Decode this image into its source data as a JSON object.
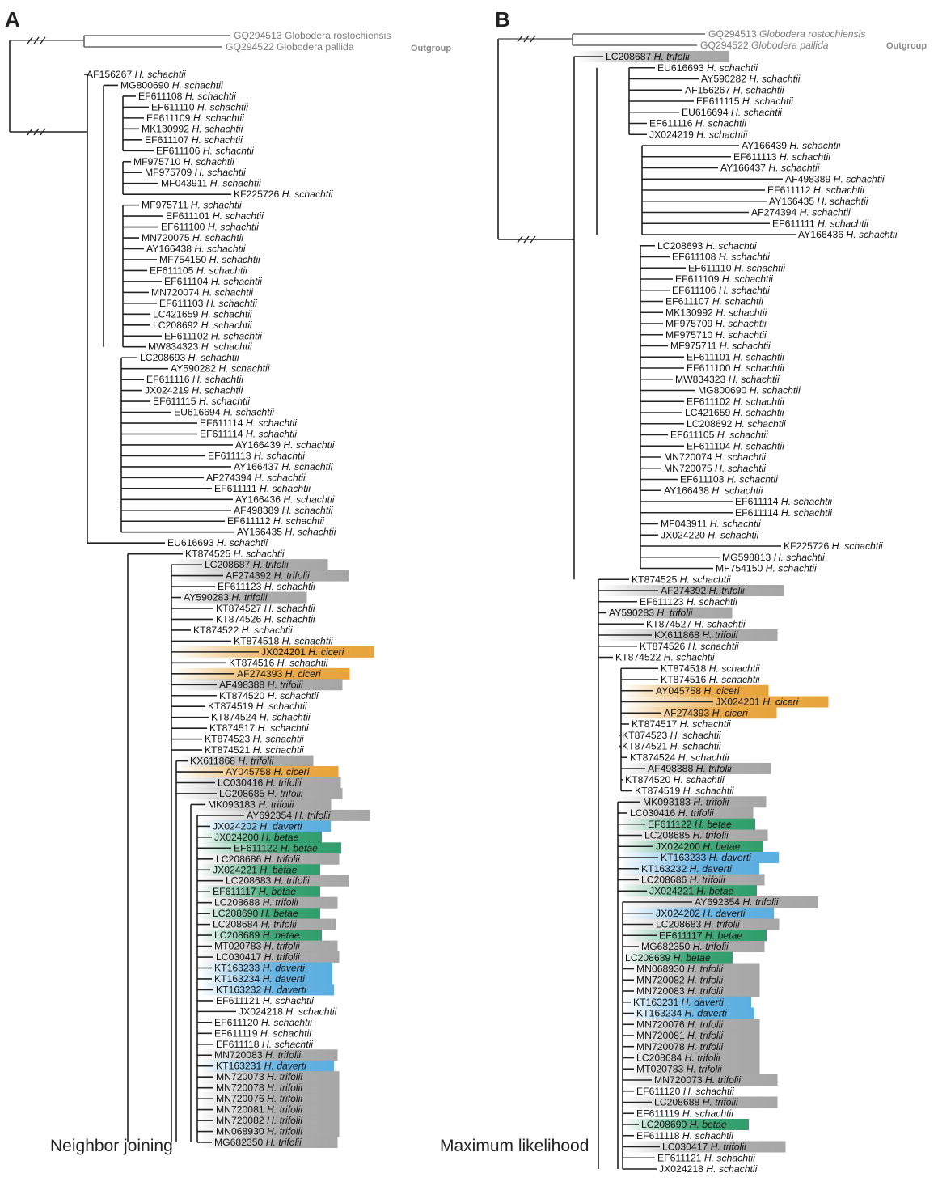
{
  "species_colors": {
    "H. trifolii": "#a6a6a6",
    "H. ciceri": "#e8a33a",
    "H. betae": "#2e9e6b",
    "H. daverti": "#5aaee0"
  },
  "panels": [
    {
      "letter": "A",
      "method": "Neighbor joining",
      "outgroup_label": "Outgroup",
      "outgroup": [
        {
          "acc": "GQ294513",
          "sp": "Globodera rostochiensis"
        },
        {
          "acc": "GQ294522",
          "sp": "Globodera pallida"
        }
      ],
      "taxa": [
        {
          "acc": "AF156267",
          "sp": "H. schachtii"
        },
        {
          "acc": "MG800690",
          "sp": "H. schachtii"
        },
        {
          "acc": "EF611108",
          "sp": "H. schachtii"
        },
        {
          "acc": "EF611110",
          "sp": "H. schachtii"
        },
        {
          "acc": "EF611109",
          "sp": "H. schachtii"
        },
        {
          "acc": "MK130992",
          "sp": "H. schachtii"
        },
        {
          "acc": "EF611107",
          "sp": "H. schachtii"
        },
        {
          "acc": "EF611106",
          "sp": "H. schachtii"
        },
        {
          "acc": "MF975710",
          "sp": "H. schachtii"
        },
        {
          "acc": "MF975709",
          "sp": "H. schachtii"
        },
        {
          "acc": "MF043911",
          "sp": "H. schachtii"
        },
        {
          "acc": "KF225726",
          "sp": "H. schachtii"
        },
        {
          "acc": "MF975711",
          "sp": "H. schachtii"
        },
        {
          "acc": "EF611101",
          "sp": "H. schachtii"
        },
        {
          "acc": "EF611100",
          "sp": "H. schachtii"
        },
        {
          "acc": "MN720075",
          "sp": "H. schachtii"
        },
        {
          "acc": "AY166438",
          "sp": "H. schachtii"
        },
        {
          "acc": "MF754150",
          "sp": "H. schachtii"
        },
        {
          "acc": "EF611105",
          "sp": "H. schachtii"
        },
        {
          "acc": "EF611104",
          "sp": "H. schachtii"
        },
        {
          "acc": "MN720074",
          "sp": "H. schachtii"
        },
        {
          "acc": "EF611103",
          "sp": "H. schachtii"
        },
        {
          "acc": "LC421659",
          "sp": "H. schachtii"
        },
        {
          "acc": "LC208692",
          "sp": "H. schachtii"
        },
        {
          "acc": "EF611102",
          "sp": "H. schachtii"
        },
        {
          "acc": "MW834323",
          "sp": "H. schachtii"
        },
        {
          "acc": "LC208693",
          "sp": "H. schachtii"
        },
        {
          "acc": "AY590282",
          "sp": "H. schachtii"
        },
        {
          "acc": "EF611116",
          "sp": "H. schachtii"
        },
        {
          "acc": "JX024219",
          "sp": "H. schachtii"
        },
        {
          "acc": "EF611115",
          "sp": "H. schachtii"
        },
        {
          "acc": "EU616694",
          "sp": "H. schachtii"
        },
        {
          "acc": "EF611114",
          "sp": "H. schachtii"
        },
        {
          "acc": "EF611114",
          "sp": "H. schachtii"
        },
        {
          "acc": "AY166439",
          "sp": "H. schachtii"
        },
        {
          "acc": "EF611113",
          "sp": "H. schachtii"
        },
        {
          "acc": "AY166437",
          "sp": "H. schachtii"
        },
        {
          "acc": "AF274394",
          "sp": "H. schachtii"
        },
        {
          "acc": "EF611111",
          "sp": "H. schachtii"
        },
        {
          "acc": "AY166436",
          "sp": "H. schachtii"
        },
        {
          "acc": "AF498389",
          "sp": "H. schachtii"
        },
        {
          "acc": "EF611112",
          "sp": "H. schachtii"
        },
        {
          "acc": "AY166435",
          "sp": "H. schachtii"
        },
        {
          "acc": "EU616693",
          "sp": "H. schachtii"
        },
        {
          "acc": "KT874525",
          "sp": "H. schachtii"
        },
        {
          "acc": "LC208687",
          "sp": "H. trifolii"
        },
        {
          "acc": "AF274392",
          "sp": "H. trifolii"
        },
        {
          "acc": "EF611123",
          "sp": "H. schachtii"
        },
        {
          "acc": "AY590283",
          "sp": "H. trifolii"
        },
        {
          "acc": "KT874527",
          "sp": "H. schachtii"
        },
        {
          "acc": "KT874526",
          "sp": "H. schachtii"
        },
        {
          "acc": "KT874522",
          "sp": "H. schachtii"
        },
        {
          "acc": "KT874518",
          "sp": "H. schachtii"
        },
        {
          "acc": "JX024201",
          "sp": "H. ciceri"
        },
        {
          "acc": "KT874516",
          "sp": "H. schachtii"
        },
        {
          "acc": "AF274393",
          "sp": "H. ciceri"
        },
        {
          "acc": "AF498388",
          "sp": "H. trifolii"
        },
        {
          "acc": "KT874520",
          "sp": "H. schachtii"
        },
        {
          "acc": "KT874519",
          "sp": "H. schachtii"
        },
        {
          "acc": "KT874524",
          "sp": "H. schachtii"
        },
        {
          "acc": "KT874517",
          "sp": "H. schachtii"
        },
        {
          "acc": "KT874523",
          "sp": "H. schachtii"
        },
        {
          "acc": "KT874521",
          "sp": "H. schachtii"
        },
        {
          "acc": "KX611868",
          "sp": "H. trifolii"
        },
        {
          "acc": "AY045758",
          "sp": "H. ciceri"
        },
        {
          "acc": "LC030416",
          "sp": "H. trifolii"
        },
        {
          "acc": "LC208685",
          "sp": "H. trifolii"
        },
        {
          "acc": "MK093183",
          "sp": "H. trifolii"
        },
        {
          "acc": "AY692354",
          "sp": "H. trifolii"
        },
        {
          "acc": "JX024202",
          "sp": "H. daverti"
        },
        {
          "acc": "JX024200",
          "sp": "H. betae"
        },
        {
          "acc": "EF611122",
          "sp": "H. betae"
        },
        {
          "acc": "LC208686",
          "sp": "H. trifolii"
        },
        {
          "acc": "JX024221",
          "sp": "H. betae"
        },
        {
          "acc": "LC208683",
          "sp": "H. trifolii"
        },
        {
          "acc": "EF611117",
          "sp": "H. betae"
        },
        {
          "acc": "LC208688",
          "sp": "H. trifolii"
        },
        {
          "acc": "LC208690",
          "sp": "H. betae"
        },
        {
          "acc": "LC208684",
          "sp": "H. trifolii"
        },
        {
          "acc": "LC208689",
          "sp": "H. betae"
        },
        {
          "acc": "MT020783",
          "sp": "H. trifolii"
        },
        {
          "acc": "LC030417",
          "sp": "H. trifolii"
        },
        {
          "acc": "KT163233",
          "sp": "H. daverti"
        },
        {
          "acc": "KT163234",
          "sp": "H. daverti"
        },
        {
          "acc": "KT163232",
          "sp": "H. daverti"
        },
        {
          "acc": "EF611121",
          "sp": "H. schachtii"
        },
        {
          "acc": "JX024218",
          "sp": "H. schachtii"
        },
        {
          "acc": "EF611120",
          "sp": "H. schachtii"
        },
        {
          "acc": "EF611119",
          "sp": "H. schachtii"
        },
        {
          "acc": "EF611118",
          "sp": "H. schachtii"
        },
        {
          "acc": "MN720083",
          "sp": "H. trifolii"
        },
        {
          "acc": "KT163231",
          "sp": "H. daverti"
        },
        {
          "acc": "MN720073",
          "sp": "H. trifolii"
        },
        {
          "acc": "MN720078",
          "sp": "H. trifolii"
        },
        {
          "acc": "MN720076",
          "sp": "H. trifolii"
        },
        {
          "acc": "MN720081",
          "sp": "H. trifolii"
        },
        {
          "acc": "MN720082",
          "sp": "H. trifolii"
        },
        {
          "acc": "MN068930",
          "sp": "H. trifolii"
        },
        {
          "acc": "MG682350",
          "sp": "H. trifolii"
        }
      ]
    },
    {
      "letter": "B",
      "method": "Maximum likelihood",
      "outgroup_label": "Outgroup",
      "outgroup": [
        {
          "acc": "GQ294513",
          "sp": "Globodera rostochiensis"
        },
        {
          "acc": "GQ294522",
          "sp": "Globodera pallida"
        }
      ],
      "taxa": [
        {
          "acc": "LC208687",
          "sp": "H. trifolii"
        },
        {
          "acc": "EU616693",
          "sp": "H. schachtii"
        },
        {
          "acc": "AY590282",
          "sp": "H. schachtii"
        },
        {
          "acc": "AF156267",
          "sp": "H. schachtii"
        },
        {
          "acc": "EF611115",
          "sp": "H. schachtii"
        },
        {
          "acc": "EU616694",
          "sp": "H. schachtii"
        },
        {
          "acc": "EF611116",
          "sp": "H. schachtii"
        },
        {
          "acc": "JX024219",
          "sp": "H. schachtii"
        },
        {
          "acc": "AY166439",
          "sp": "H. schachtii"
        },
        {
          "acc": "EF611113",
          "sp": "H. schachtii"
        },
        {
          "acc": "AY166437",
          "sp": "H. schachtii"
        },
        {
          "acc": "AF498389",
          "sp": "H. schachtii"
        },
        {
          "acc": "EF611112",
          "sp": "H. schachtii"
        },
        {
          "acc": "AY166435",
          "sp": "H. schachtii"
        },
        {
          "acc": "AF274394",
          "sp": "H. schachtii"
        },
        {
          "acc": "EF611111",
          "sp": "H. schachtii"
        },
        {
          "acc": "AY166436",
          "sp": "H. schachtii"
        },
        {
          "acc": "LC208693",
          "sp": "H. schachtii"
        },
        {
          "acc": "EF611108",
          "sp": "H. schachtii"
        },
        {
          "acc": "EF611110",
          "sp": "H. schachtii"
        },
        {
          "acc": "EF611109",
          "sp": "H. schachtii"
        },
        {
          "acc": "EF611106",
          "sp": "H. schachtii"
        },
        {
          "acc": "EF611107",
          "sp": "H. schachtii"
        },
        {
          "acc": "MK130992",
          "sp": "H. schachtii"
        },
        {
          "acc": "MF975709",
          "sp": "H. schachtii"
        },
        {
          "acc": "MF975710",
          "sp": "H. schachtii"
        },
        {
          "acc": "MF975711",
          "sp": "H. schachtii"
        },
        {
          "acc": "EF611101",
          "sp": "H. schachtii"
        },
        {
          "acc": "EF611100",
          "sp": "H. schachtii"
        },
        {
          "acc": "MW834323",
          "sp": "H. schachtii"
        },
        {
          "acc": "MG800690",
          "sp": "H. schachtii"
        },
        {
          "acc": "EF611102",
          "sp": "H. schachtii"
        },
        {
          "acc": "LC421659",
          "sp": "H. schachtii"
        },
        {
          "acc": "LC208692",
          "sp": "H. schachtii"
        },
        {
          "acc": "EF611105",
          "sp": "H. schachtii"
        },
        {
          "acc": "EF611104",
          "sp": "H. schachtii"
        },
        {
          "acc": "MN720074",
          "sp": "H. schachtii"
        },
        {
          "acc": "MN720075",
          "sp": "H. schachtii"
        },
        {
          "acc": "EF611103",
          "sp": "H. schachtii"
        },
        {
          "acc": "AY166438",
          "sp": "H. schachtii"
        },
        {
          "acc": "EF611114",
          "sp": "H. schachtii"
        },
        {
          "acc": "EF611114",
          "sp": "H. schachtii"
        },
        {
          "acc": "MF043911",
          "sp": "H. schachtii"
        },
        {
          "acc": "JX024220",
          "sp": "H. schachtii"
        },
        {
          "acc": "KF225726",
          "sp": "H. schachtii"
        },
        {
          "acc": "MG598813",
          "sp": "H. schachtii"
        },
        {
          "acc": "MF754150",
          "sp": "H. schachtii"
        },
        {
          "acc": "KT874525",
          "sp": "H. schachtii"
        },
        {
          "acc": "AF274392",
          "sp": "H. trifolii"
        },
        {
          "acc": "EF611123",
          "sp": "H. schachtii"
        },
        {
          "acc": "AY590283",
          "sp": "H. trifolii"
        },
        {
          "acc": "KT874527",
          "sp": "H. schachtii"
        },
        {
          "acc": "KX611868",
          "sp": "H. trifolii"
        },
        {
          "acc": "KT874526",
          "sp": "H. schachtii"
        },
        {
          "acc": "KT874522",
          "sp": "H. schachtii"
        },
        {
          "acc": "KT874518",
          "sp": "H. schachtii"
        },
        {
          "acc": "KT874516",
          "sp": "H. schachtii"
        },
        {
          "acc": "AY045758",
          "sp": "H. ciceri"
        },
        {
          "acc": "JX024201",
          "sp": "H. ciceri"
        },
        {
          "acc": "AF274393",
          "sp": "H. ciceri"
        },
        {
          "acc": "KT874517",
          "sp": "H. schachtii"
        },
        {
          "acc": "KT874523",
          "sp": "H. schachtii"
        },
        {
          "acc": "KT874521",
          "sp": "H. schachtii"
        },
        {
          "acc": "KT874524",
          "sp": "H. schachtii"
        },
        {
          "acc": "AF498388",
          "sp": "H. trifolii"
        },
        {
          "acc": "KT874520",
          "sp": "H. schachtii"
        },
        {
          "acc": "KT874519",
          "sp": "H. schachtii"
        },
        {
          "acc": "MK093183",
          "sp": "H. trifolii"
        },
        {
          "acc": "LC030416",
          "sp": "H. trifolii"
        },
        {
          "acc": "EF611122",
          "sp": "H. betae"
        },
        {
          "acc": "LC208685",
          "sp": "H. trifolii"
        },
        {
          "acc": "JX024200",
          "sp": "H. betae"
        },
        {
          "acc": "KT163233",
          "sp": "H. daverti"
        },
        {
          "acc": "KT163232",
          "sp": "H. daverti"
        },
        {
          "acc": "LC208686",
          "sp": "H. trifolii"
        },
        {
          "acc": "JX024221",
          "sp": "H. betae"
        },
        {
          "acc": "AY692354",
          "sp": "H. trifolii"
        },
        {
          "acc": "JX024202",
          "sp": "H. daverti"
        },
        {
          "acc": "LC208683",
          "sp": "H. trifolii"
        },
        {
          "acc": "EF611117",
          "sp": "H. betae"
        },
        {
          "acc": "MG682350",
          "sp": "H. trifolii"
        },
        {
          "acc": "LC208689",
          "sp": "H. betae"
        },
        {
          "acc": "MN068930",
          "sp": "H. trifolii"
        },
        {
          "acc": "MN720082",
          "sp": "H. trifolii"
        },
        {
          "acc": "MN720083",
          "sp": "H. trifolii"
        },
        {
          "acc": "KT163231",
          "sp": "H. daverti"
        },
        {
          "acc": "KT163234",
          "sp": "H. daverti"
        },
        {
          "acc": "MN720076",
          "sp": "H. trifolii"
        },
        {
          "acc": "MN720081",
          "sp": "H. trifolii"
        },
        {
          "acc": "MN720078",
          "sp": "H. trifolii"
        },
        {
          "acc": "LC208684",
          "sp": "H. trifolii"
        },
        {
          "acc": "MT020783",
          "sp": "H. trifolii"
        },
        {
          "acc": "MN720073",
          "sp": "H. trifolii"
        },
        {
          "acc": "EF611120",
          "sp": "H. schachtii"
        },
        {
          "acc": "LC208688",
          "sp": "H. trifolii"
        },
        {
          "acc": "EF611119",
          "sp": "H. schachtii"
        },
        {
          "acc": "LC208690",
          "sp": "H. betae"
        },
        {
          "acc": "EF611118",
          "sp": "H. schachtii"
        },
        {
          "acc": "LC030417",
          "sp": "H. trifolii"
        },
        {
          "acc": "EF611121",
          "sp": "H. schachtii"
        },
        {
          "acc": "JX024218",
          "sp": "H. schachtii"
        }
      ]
    }
  ]
}
